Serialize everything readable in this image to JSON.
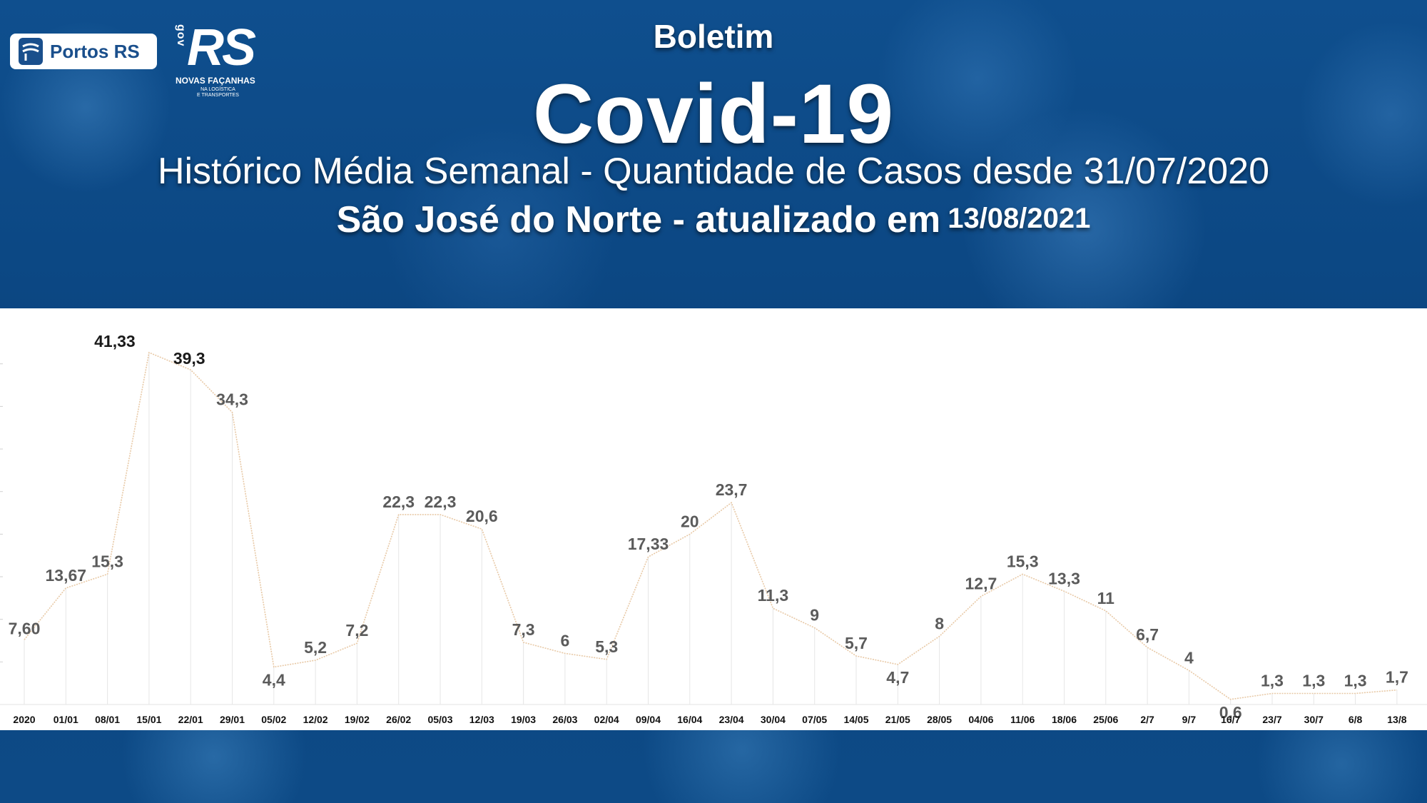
{
  "header": {
    "boletim": "Boletim",
    "title": "Covid-19",
    "subtitle": "Histórico Média Semanal - Quantidade de Casos desde 31/07/2020",
    "location": "São José do Norte - atualizado em",
    "updated_date": "13/08/2021"
  },
  "logos": {
    "portos": "Portos RS",
    "rs_gov": "gov",
    "rs_main": "RS",
    "rs_tagline": "NOVAS FAÇANHAS",
    "rs_sub1": "NA LOGÍSTICA",
    "rs_sub2": "E TRANSPORTES"
  },
  "colors": {
    "background": "#0d4a86",
    "line": "#e8c9a6",
    "drop_line": "#e6e6e6",
    "label": "#5b5b5b",
    "peak_label": "#1a1a1a"
  },
  "chart_data": {
    "type": "line",
    "title": "Histórico Média Semanal - Quantidade de Casos desde 31/07/2020",
    "xlabel": "",
    "ylabel": "",
    "ylim": [
      0,
      44
    ],
    "grid": false,
    "legend": "none",
    "categories": [
      "2020",
      "01/01",
      "08/01",
      "15/01",
      "22/01",
      "29/01",
      "05/02",
      "12/02",
      "19/02",
      "26/02",
      "05/03",
      "12/03",
      "19/03",
      "26/03",
      "02/04",
      "09/04",
      "16/04",
      "23/04",
      "30/04",
      "07/05",
      "14/05",
      "21/05",
      "28/05",
      "04/06",
      "11/06",
      "18/06",
      "25/06",
      "2/7",
      "9/7",
      "16/7",
      "23/7",
      "30/7",
      "6/8",
      "13/8"
    ],
    "values": [
      7.6,
      13.67,
      15.3,
      41.33,
      39.3,
      34.3,
      4.4,
      5.2,
      7.2,
      22.3,
      22.3,
      20.6,
      7.3,
      6,
      5.3,
      17.33,
      20,
      23.7,
      11.3,
      9,
      5.7,
      4.7,
      8,
      12.7,
      15.3,
      13.3,
      11,
      6.7,
      4,
      0.6,
      1.3,
      1.3,
      1.3,
      1.7
    ],
    "labels": [
      "7,60",
      "13,67",
      "15,3",
      "41,33",
      "39,3",
      "34,3",
      "4,4",
      "5,2",
      "7,2",
      "22,3",
      "22,3",
      "20,6",
      "7,3",
      "6",
      "5,3",
      "17,33",
      "20",
      "23,7",
      "11,3",
      "9",
      "5,7",
      "4,7",
      "8",
      "12,7",
      "15,3",
      "13,3",
      "11",
      "6,7",
      "4",
      "0,6",
      "1,3",
      "1,3",
      "1,3",
      "1,7"
    ],
    "highlighted": [
      "41,33",
      "39,3"
    ]
  }
}
